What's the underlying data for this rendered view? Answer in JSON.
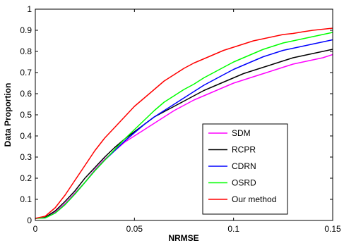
{
  "chart_data": {
    "type": "line",
    "title": "",
    "xlabel": "NRMSE",
    "ylabel": "Data Proportion",
    "xlim": [
      0,
      0.15
    ],
    "ylim": [
      0,
      1
    ],
    "xticks": [
      {
        "value": 0,
        "label": "0"
      },
      {
        "value": 0.05,
        "label": "0.05"
      },
      {
        "value": 0.1,
        "label": "0.1"
      },
      {
        "value": 0.15,
        "label": "0.15"
      }
    ],
    "yticks": [
      {
        "value": 0,
        "label": "0"
      },
      {
        "value": 0.1,
        "label": "0.1"
      },
      {
        "value": 0.2,
        "label": "0.2"
      },
      {
        "value": 0.3,
        "label": "0.3"
      },
      {
        "value": 0.4,
        "label": "0.4"
      },
      {
        "value": 0.5,
        "label": "0.5"
      },
      {
        "value": 0.6,
        "label": "0.6"
      },
      {
        "value": 0.7,
        "label": "0.7"
      },
      {
        "value": 0.8,
        "label": "0.8"
      },
      {
        "value": 0.9,
        "label": "0.9"
      },
      {
        "value": 1,
        "label": "1"
      }
    ],
    "grid": false,
    "legend_position": "lower-right",
    "x": [
      0,
      0.005,
      0.01,
      0.015,
      0.02,
      0.025,
      0.03,
      0.035,
      0.04,
      0.045,
      0.05,
      0.055,
      0.06,
      0.065,
      0.07,
      0.075,
      0.08,
      0.085,
      0.09,
      0.095,
      0.1,
      0.105,
      0.11,
      0.115,
      0.12,
      0.125,
      0.13,
      0.135,
      0.14,
      0.145,
      0.15
    ],
    "series": [
      {
        "name": "SDM",
        "color": "#ff00ff",
        "values": [
          0.01,
          0.015,
          0.04,
          0.08,
          0.13,
          0.18,
          0.24,
          0.29,
          0.33,
          0.37,
          0.4,
          0.43,
          0.46,
          0.49,
          0.52,
          0.545,
          0.57,
          0.59,
          0.61,
          0.63,
          0.65,
          0.665,
          0.68,
          0.695,
          0.71,
          0.725,
          0.74,
          0.75,
          0.76,
          0.77,
          0.785
        ]
      },
      {
        "name": "RCPR",
        "color": "#000000",
        "values": [
          0.01,
          0.015,
          0.045,
          0.09,
          0.14,
          0.2,
          0.25,
          0.3,
          0.345,
          0.385,
          0.42,
          0.455,
          0.49,
          0.515,
          0.54,
          0.565,
          0.59,
          0.615,
          0.635,
          0.655,
          0.675,
          0.695,
          0.71,
          0.725,
          0.74,
          0.755,
          0.77,
          0.78,
          0.79,
          0.8,
          0.81
        ]
      },
      {
        "name": "CDRN",
        "color": "#0000ff",
        "values": [
          0.01,
          0.012,
          0.035,
          0.075,
          0.125,
          0.18,
          0.235,
          0.285,
          0.33,
          0.375,
          0.415,
          0.455,
          0.49,
          0.52,
          0.55,
          0.58,
          0.61,
          0.64,
          0.665,
          0.69,
          0.715,
          0.735,
          0.755,
          0.775,
          0.79,
          0.805,
          0.815,
          0.825,
          0.835,
          0.845,
          0.855
        ]
      },
      {
        "name": "OSRD",
        "color": "#00ff00",
        "values": [
          0.01,
          0.012,
          0.035,
          0.075,
          0.125,
          0.18,
          0.235,
          0.285,
          0.335,
          0.385,
          0.43,
          0.475,
          0.52,
          0.56,
          0.59,
          0.62,
          0.645,
          0.675,
          0.7,
          0.725,
          0.75,
          0.77,
          0.79,
          0.81,
          0.825,
          0.84,
          0.85,
          0.86,
          0.87,
          0.88,
          0.89
        ]
      },
      {
        "name": "Our method",
        "color": "#ff0000",
        "values": [
          0.01,
          0.02,
          0.06,
          0.12,
          0.19,
          0.26,
          0.33,
          0.39,
          0.44,
          0.49,
          0.54,
          0.58,
          0.62,
          0.66,
          0.69,
          0.72,
          0.745,
          0.765,
          0.785,
          0.805,
          0.82,
          0.835,
          0.85,
          0.86,
          0.87,
          0.88,
          0.885,
          0.893,
          0.9,
          0.905,
          0.91
        ]
      }
    ]
  }
}
